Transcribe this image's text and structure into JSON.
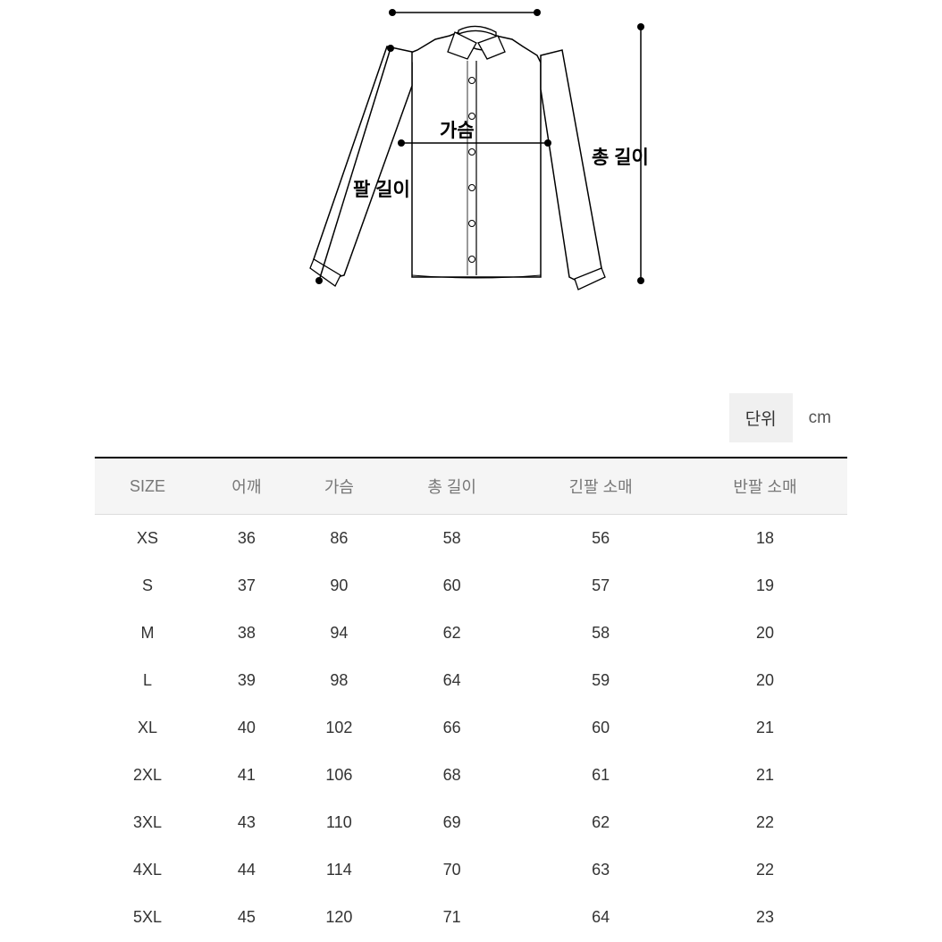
{
  "diagram": {
    "labels": {
      "chest": "가슴",
      "total_length": "총 길이",
      "sleeve_length": "팔 길이"
    },
    "stroke_color": "#000000",
    "stroke_width": 1.5,
    "fill_color": "#ffffff",
    "background_color": "#ffffff",
    "label_fontsize": 21,
    "label_fontweight": 700,
    "label_color": "#000000"
  },
  "unit": {
    "label": "단위",
    "value": "cm",
    "label_bg": "#f0f0f0",
    "fontsize": 19,
    "label_color": "#333333",
    "value_color": "#555555"
  },
  "table": {
    "type": "table",
    "columns": [
      "SIZE",
      "어깨",
      "가슴",
      "총 길이",
      "긴팔 소매",
      "반팔 소매"
    ],
    "rows": [
      [
        "XS",
        "36",
        "86",
        "58",
        "56",
        "18"
      ],
      [
        "S",
        "37",
        "90",
        "60",
        "57",
        "19"
      ],
      [
        "M",
        "38",
        "94",
        "62",
        "58",
        "20"
      ],
      [
        "L",
        "39",
        "98",
        "64",
        "59",
        "20"
      ],
      [
        "XL",
        "40",
        "102",
        "66",
        "60",
        "21"
      ],
      [
        "2XL",
        "41",
        "106",
        "68",
        "61",
        "21"
      ],
      [
        "3XL",
        "43",
        "110",
        "69",
        "62",
        "22"
      ],
      [
        "4XL",
        "44",
        "114",
        "70",
        "63",
        "22"
      ],
      [
        "5XL",
        "45",
        "120",
        "71",
        "64",
        "23"
      ]
    ],
    "header_bg": "#f5f5f5",
    "header_color": "#777777",
    "header_fontsize": 18,
    "body_color": "#333333",
    "body_fontsize": 18,
    "border_top_color": "#000000",
    "border_top_width": 2,
    "header_border_color": "#dddddd"
  }
}
